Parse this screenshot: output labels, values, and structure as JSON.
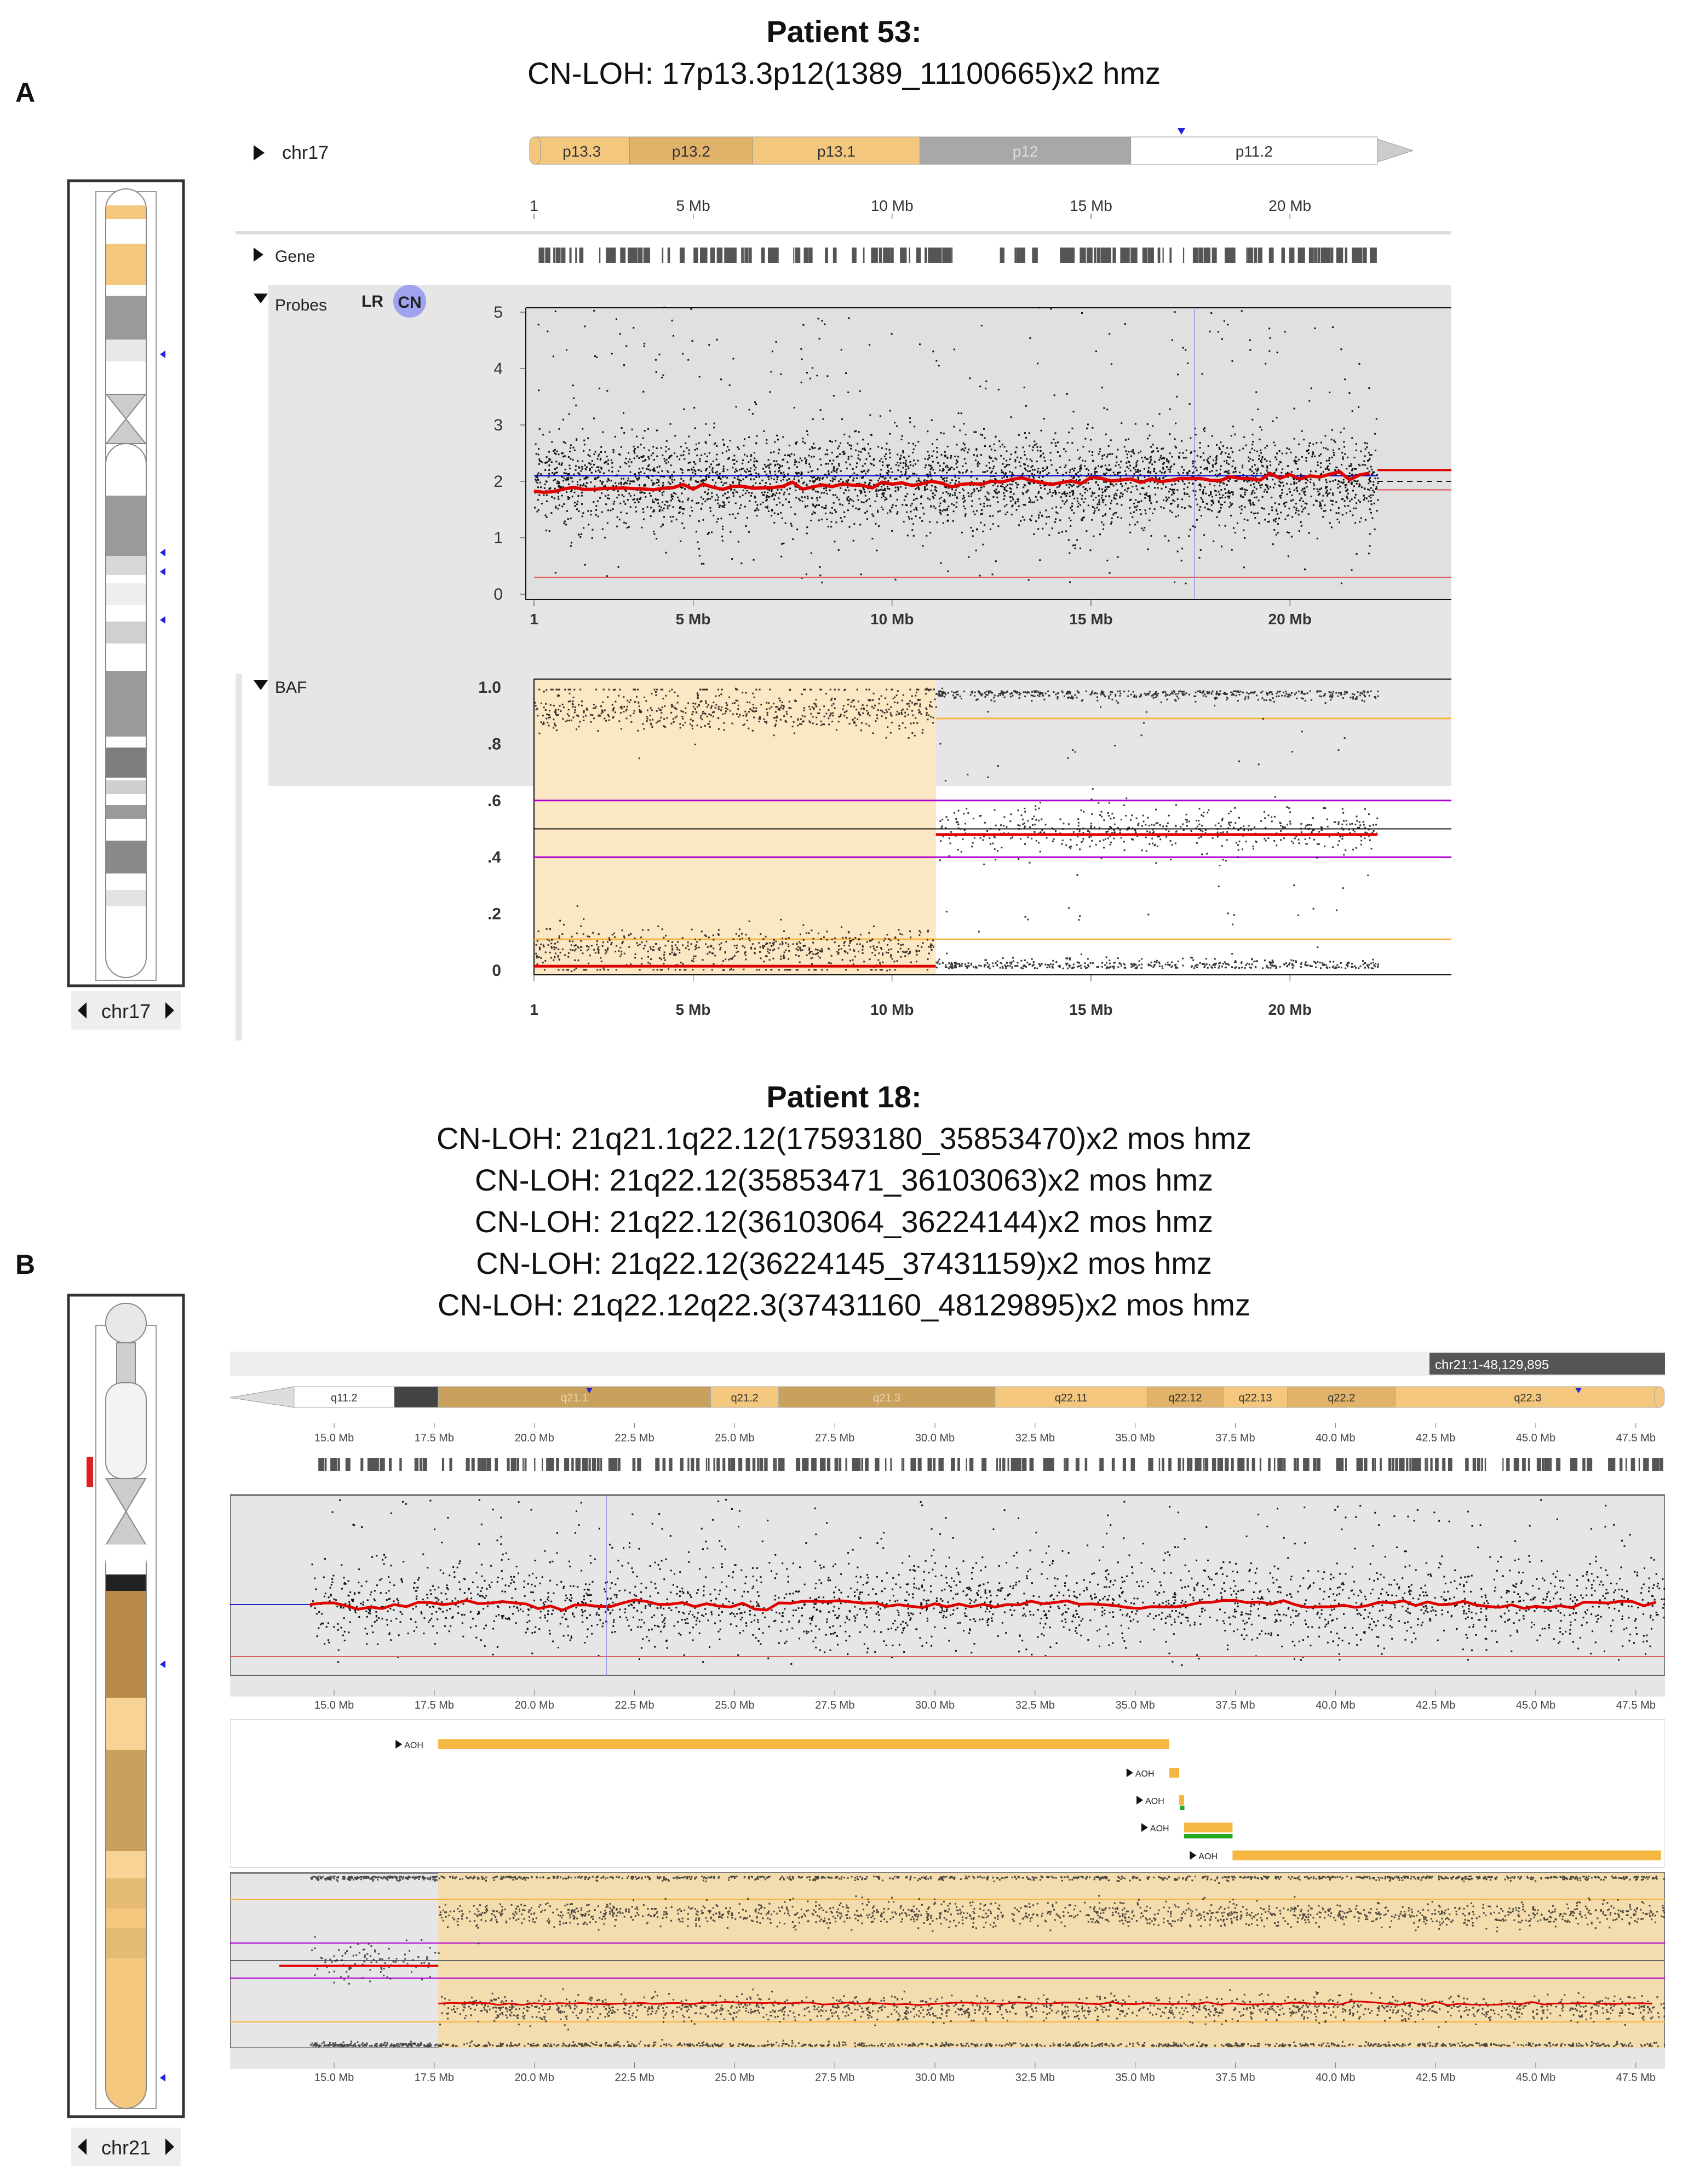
{
  "panelA": {
    "label": "A",
    "title": "Patient 53:",
    "subtitle": "CN-LOH: 17p13.3p12(1389_11100665)x2 hmz",
    "ideogram": {
      "chrom_label": "chr17"
    },
    "track_header": {
      "chrom": "chr17"
    },
    "bands": [
      {
        "name": "p13.3",
        "start": 1,
        "end": 3.4,
        "color": "#f3c77d"
      },
      {
        "name": "p13.2",
        "start": 3.4,
        "end": 6.5,
        "color": "#e0b26a"
      },
      {
        "name": "p13.1",
        "start": 6.5,
        "end": 10.7,
        "color": "#f3c77d"
      },
      {
        "name": "p12",
        "start": 10.7,
        "end": 16.0,
        "color": "#a8a8a8"
      },
      {
        "name": "p11.2",
        "start": 16.0,
        "end": 22.2,
        "color": "#ffffff"
      }
    ],
    "axis_ticks": [
      "1",
      "5 Mb",
      "10 Mb",
      "15 Mb",
      "20 Mb"
    ],
    "tracks": {
      "gene": "Gene",
      "probes": "Probes",
      "baf": "BAF"
    },
    "probe_buttons": {
      "lr": "LR",
      "cn": "CN"
    },
    "cn_yticks": [
      "5",
      "4",
      "3",
      "2",
      "1",
      "0"
    ],
    "baf_yticks": [
      "1.0",
      ".8",
      ".6",
      ".4",
      ".2",
      "0"
    ],
    "baf_xticks": [
      "1",
      "5 Mb",
      "10 Mb",
      "15 Mb",
      "20 Mb"
    ],
    "loh_region": {
      "start_mb": 0.0014,
      "end_mb": 11.1
    },
    "colors": {
      "loh_fill": "#fbe7c4",
      "cn_line": "#e00000",
      "ref_line": "#0000cc",
      "baf_guide": "#f5b642",
      "baf_het": "#b000d0"
    }
  },
  "panelB": {
    "label": "B",
    "title": "Patient 18:",
    "subtitle_lines": [
      "CN-LOH: 21q21.1q22.12(17593180_35853470)x2 mos hmz",
      "CN-LOH: 21q22.12(35853471_36103063)x2 mos hmz",
      "CN-LOH: 21q22.12(36103064_36224144)x2 mos hmz",
      "CN-LOH: 21q22.12(36224145_37431159)x2 mos hmz",
      "CN-LOH: 21q22.12q22.3(37431160_48129895)x2 mos hmz"
    ],
    "ideogram": {
      "chrom_label": "chr21"
    },
    "coord_badge": "chr21:1-48,129,895",
    "bands": [
      {
        "name": "q11.2",
        "start": 14.0,
        "end": 16.5,
        "color": "#ffffff"
      },
      {
        "name": "",
        "start": 16.5,
        "end": 17.6,
        "color": "#444444"
      },
      {
        "name": "q21.1",
        "start": 17.6,
        "end": 24.4,
        "color": "#c9a05c"
      },
      {
        "name": "q21.2",
        "start": 24.4,
        "end": 26.1,
        "color": "#f3c77d"
      },
      {
        "name": "q21.3",
        "start": 26.1,
        "end": 31.5,
        "color": "#c9a05c"
      },
      {
        "name": "q22.11",
        "start": 31.5,
        "end": 35.3,
        "color": "#f3c77d"
      },
      {
        "name": "q22.12",
        "start": 35.3,
        "end": 37.2,
        "color": "#e0b26a"
      },
      {
        "name": "q22.13",
        "start": 37.2,
        "end": 38.8,
        "color": "#f3c77d"
      },
      {
        "name": "q22.2",
        "start": 38.8,
        "end": 41.5,
        "color": "#e0b26a"
      },
      {
        "name": "q22.3",
        "start": 41.5,
        "end": 48.1,
        "color": "#f3c77d"
      }
    ],
    "axis_ticks": [
      "15.0 Mb",
      "17.5 Mb",
      "20.0 Mb",
      "22.5 Mb",
      "25.0 Mb",
      "27.5 Mb",
      "30.0 Mb",
      "32.5 Mb",
      "35.0 Mb",
      "37.5 Mb",
      "40.0 Mb",
      "42.5 Mb",
      "45.0 Mb",
      "47.5 Mb"
    ],
    "aoh_label": "AOH",
    "aoh_segments": [
      {
        "start": 17.6,
        "end": 35.85
      },
      {
        "start": 35.85,
        "end": 36.1
      },
      {
        "start": 36.1,
        "end": 36.22
      },
      {
        "start": 36.22,
        "end": 37.43
      },
      {
        "start": 37.43,
        "end": 48.13
      }
    ],
    "colors": {
      "loh_fill": "#f3dcae",
      "aoh_bar": "#f5b642",
      "green": "#22aa22"
    }
  }
}
